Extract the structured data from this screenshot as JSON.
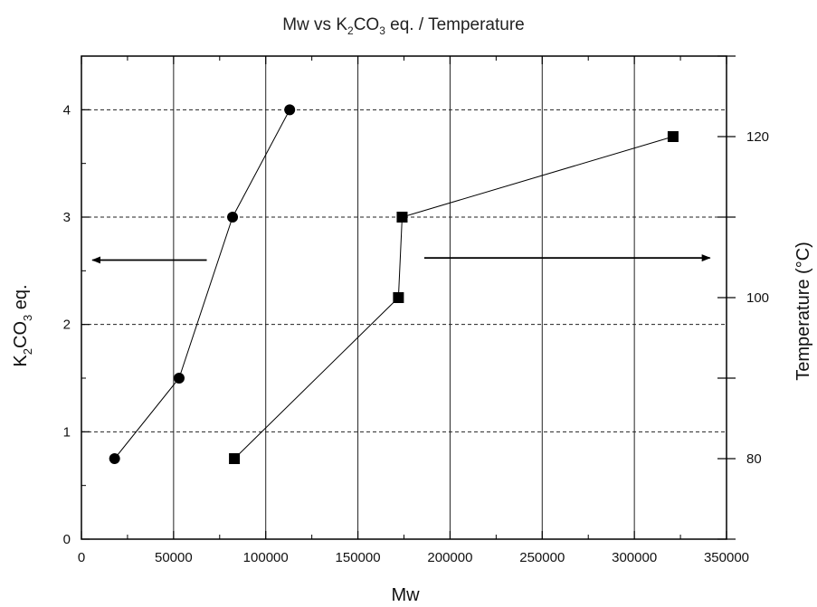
{
  "chart_data": {
    "type": "scatter",
    "title_parts": [
      "Mw vs K",
      "2",
      "CO",
      "3",
      " eq. / Temperature"
    ],
    "xlabel": "Mw",
    "ylabel_left_parts": [
      "K",
      "2",
      "CO",
      "3",
      " eq."
    ],
    "ylabel_right": "Temperature (°C)",
    "xlim": [
      0,
      350000
    ],
    "ylim_left": [
      0,
      4.5
    ],
    "ylim_right": [
      70,
      130
    ],
    "x_ticks": [
      "0",
      "50000",
      "100000",
      "150000",
      "200000",
      "250000",
      "300000",
      "350000"
    ],
    "y_left_ticks": [
      "0",
      "1",
      "2",
      "3",
      "4"
    ],
    "y_right_ticks": [
      "80",
      "100",
      "120"
    ],
    "grid": {
      "vertical": "solid",
      "horizontal": "dashed"
    },
    "series": [
      {
        "marker": "circle",
        "axis": "left",
        "x": [
          18000,
          53000,
          82000,
          113000
        ],
        "y": [
          0.75,
          1.5,
          3.0,
          4.0
        ]
      },
      {
        "marker": "square",
        "axis": "right",
        "x": [
          83000,
          172000,
          174000,
          321000
        ],
        "y": [
          80,
          100,
          110,
          120
        ]
      }
    ],
    "annotations": [
      {
        "type": "arrow",
        "direction": "left",
        "points_to_axis": "left",
        "x_from": 68000,
        "x_to": 6000,
        "y_left": 2.6
      },
      {
        "type": "arrow",
        "direction": "right",
        "points_to_axis": "right",
        "x_from": 186000,
        "x_to": 341000,
        "y_left": 2.62
      }
    ],
    "colors": {
      "marks": "#000000",
      "grid": "#222222",
      "background": "#ffffff"
    }
  }
}
